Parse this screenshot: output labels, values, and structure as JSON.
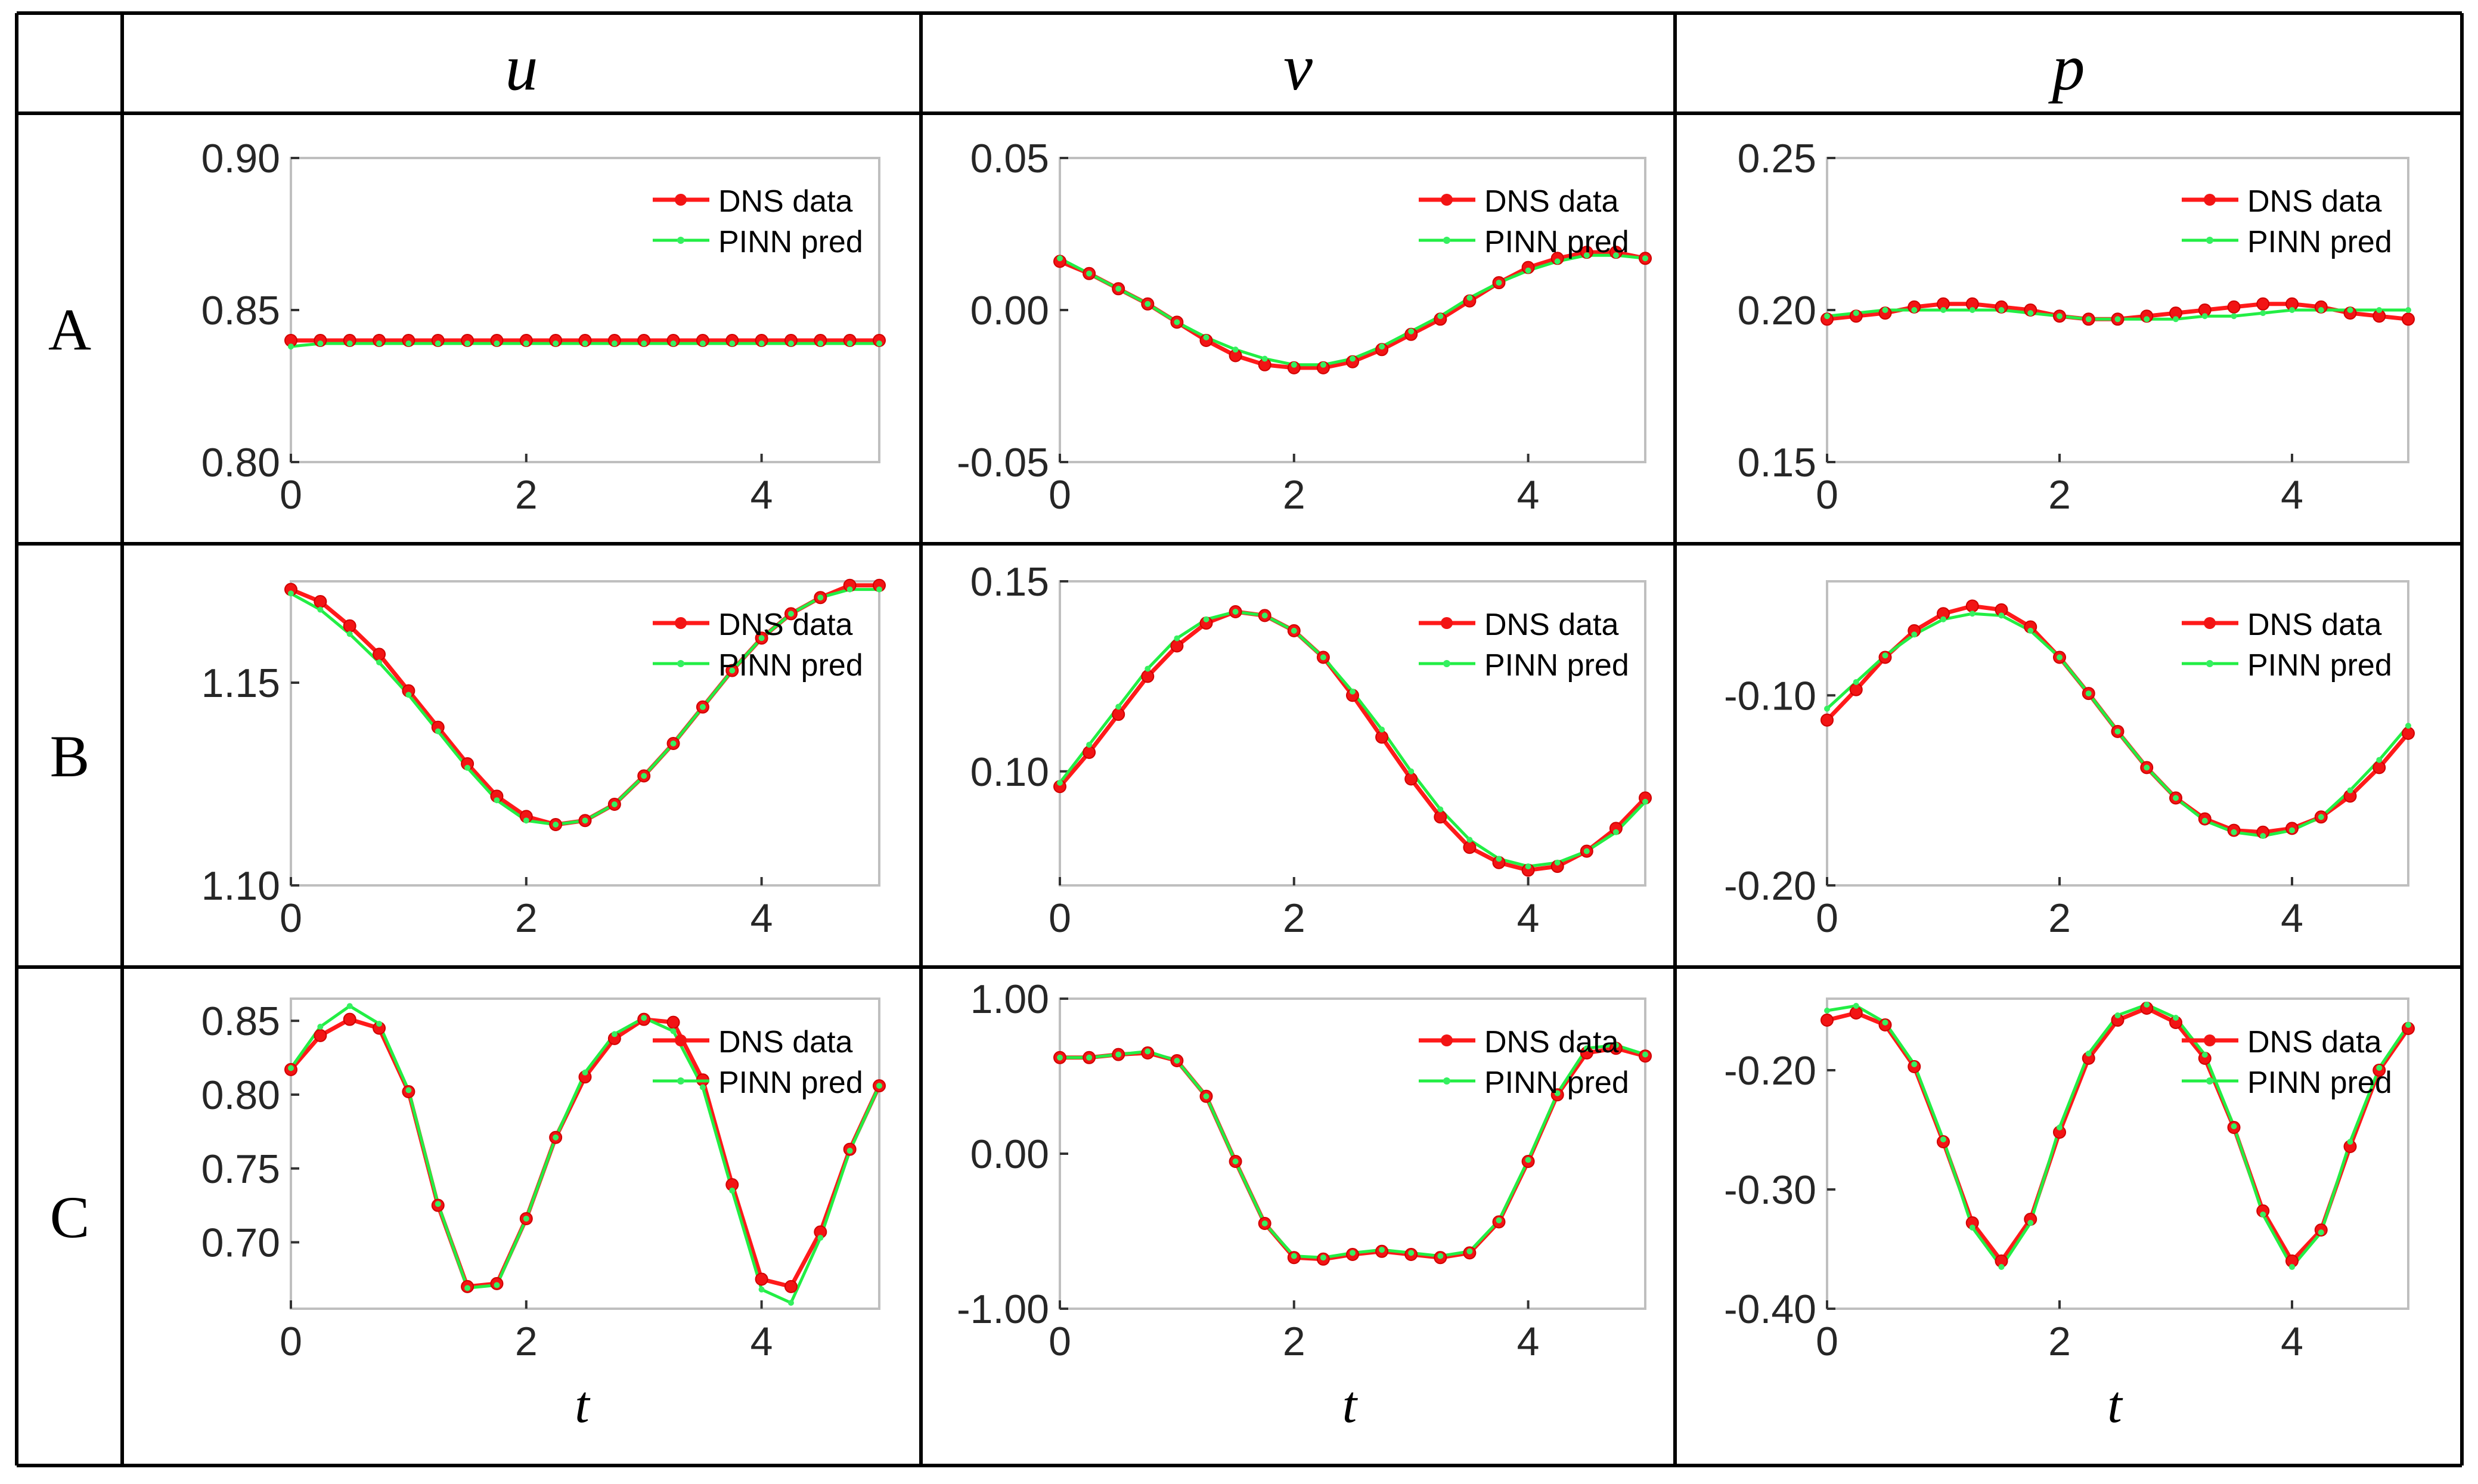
{
  "table": {
    "column_headers": [
      "u",
      "v",
      "p"
    ],
    "row_labels": [
      "A",
      "B",
      "C"
    ],
    "x_axis_label": "t"
  },
  "legend": {
    "dns_label": "DNS data",
    "pinn_label": "PINN pred"
  },
  "colors": {
    "dns": "#ff1a1a",
    "dns_marker": "#f21414",
    "pinn": "#22ee44",
    "pinn_marker": "#35f060"
  },
  "chart_data": [
    {
      "id": "A-u",
      "row": "A",
      "column": "u",
      "type": "line",
      "x": [
        0,
        0.25,
        0.5,
        0.75,
        1,
        1.25,
        1.5,
        1.75,
        2,
        2.25,
        2.5,
        2.75,
        3,
        3.25,
        3.5,
        3.75,
        4,
        4.25,
        4.5,
        4.75,
        5
      ],
      "xlim": [
        0,
        5
      ],
      "xticks": [
        "0",
        "2",
        "4"
      ],
      "xtick_values": [
        0,
        2,
        4
      ],
      "ylim": [
        0.8,
        0.9
      ],
      "yticks": [
        "0.80",
        "0.85",
        "0.90"
      ],
      "ytick_values": [
        0.8,
        0.85,
        0.9
      ],
      "series": [
        {
          "name": "DNS data",
          "values": [
            0.84,
            0.84,
            0.84,
            0.84,
            0.84,
            0.84,
            0.84,
            0.84,
            0.84,
            0.84,
            0.84,
            0.84,
            0.84,
            0.84,
            0.84,
            0.84,
            0.84,
            0.84,
            0.84,
            0.84,
            0.84
          ]
        },
        {
          "name": "PINN pred",
          "values": [
            0.838,
            0.839,
            0.839,
            0.839,
            0.839,
            0.839,
            0.839,
            0.839,
            0.839,
            0.839,
            0.839,
            0.839,
            0.839,
            0.839,
            0.839,
            0.839,
            0.839,
            0.839,
            0.839,
            0.839,
            0.839
          ]
        }
      ]
    },
    {
      "id": "A-v",
      "row": "A",
      "column": "v",
      "type": "line",
      "x": [
        0,
        0.25,
        0.5,
        0.75,
        1,
        1.25,
        1.5,
        1.75,
        2,
        2.25,
        2.5,
        2.75,
        3,
        3.25,
        3.5,
        3.75,
        4,
        4.25,
        4.5,
        4.75,
        5
      ],
      "xlim": [
        0,
        5
      ],
      "xticks": [
        "0",
        "2",
        "4"
      ],
      "xtick_values": [
        0,
        2,
        4
      ],
      "ylim": [
        -0.05,
        0.05
      ],
      "yticks": [
        "-0.05",
        "0.00",
        "0.05"
      ],
      "ytick_values": [
        -0.05,
        0.0,
        0.05
      ],
      "series": [
        {
          "name": "DNS data",
          "values": [
            0.016,
            0.012,
            0.007,
            0.002,
            -0.004,
            -0.01,
            -0.015,
            -0.018,
            -0.019,
            -0.019,
            -0.017,
            -0.013,
            -0.008,
            -0.003,
            0.003,
            0.009,
            0.014,
            0.017,
            0.019,
            0.019,
            0.017
          ]
        },
        {
          "name": "PINN pred",
          "values": [
            0.017,
            0.012,
            0.007,
            0.002,
            -0.004,
            -0.009,
            -0.013,
            -0.016,
            -0.018,
            -0.018,
            -0.016,
            -0.012,
            -0.007,
            -0.002,
            0.004,
            0.009,
            0.013,
            0.016,
            0.018,
            0.018,
            0.017
          ]
        }
      ]
    },
    {
      "id": "A-p",
      "row": "A",
      "column": "p",
      "type": "line",
      "x": [
        0,
        0.25,
        0.5,
        0.75,
        1,
        1.25,
        1.5,
        1.75,
        2,
        2.25,
        2.5,
        2.75,
        3,
        3.25,
        3.5,
        3.75,
        4,
        4.25,
        4.5,
        4.75,
        5
      ],
      "xlim": [
        0,
        5
      ],
      "xticks": [
        "0",
        "2",
        "4"
      ],
      "xtick_values": [
        0,
        2,
        4
      ],
      "ylim": [
        0.15,
        0.25
      ],
      "yticks": [
        "0.15",
        "0.20",
        "0.25"
      ],
      "ytick_values": [
        0.15,
        0.2,
        0.25
      ],
      "series": [
        {
          "name": "DNS data",
          "values": [
            0.197,
            0.198,
            0.199,
            0.201,
            0.202,
            0.202,
            0.201,
            0.2,
            0.198,
            0.197,
            0.197,
            0.198,
            0.199,
            0.2,
            0.201,
            0.202,
            0.202,
            0.201,
            0.199,
            0.198,
            0.197
          ]
        },
        {
          "name": "PINN pred",
          "values": [
            0.198,
            0.199,
            0.2,
            0.2,
            0.2,
            0.2,
            0.2,
            0.199,
            0.198,
            0.197,
            0.197,
            0.197,
            0.197,
            0.198,
            0.198,
            0.199,
            0.2,
            0.2,
            0.2,
            0.2,
            0.2
          ]
        }
      ]
    },
    {
      "id": "B-u",
      "row": "B",
      "column": "u",
      "type": "line",
      "x": [
        0,
        0.25,
        0.5,
        0.75,
        1,
        1.25,
        1.5,
        1.75,
        2,
        2.25,
        2.5,
        2.75,
        3,
        3.25,
        3.5,
        3.75,
        4,
        4.25,
        4.5,
        4.75,
        5
      ],
      "xlim": [
        0,
        5
      ],
      "xticks": [
        "0",
        "2",
        "4"
      ],
      "xtick_values": [
        0,
        2,
        4
      ],
      "ylim": [
        1.1,
        1.175
      ],
      "yticks": [
        "1.10",
        "1.15"
      ],
      "ytick_values": [
        1.1,
        1.15
      ],
      "series": [
        {
          "name": "DNS data",
          "values": [
            1.173,
            1.17,
            1.164,
            1.157,
            1.148,
            1.139,
            1.13,
            1.122,
            1.117,
            1.115,
            1.116,
            1.12,
            1.127,
            1.135,
            1.144,
            1.153,
            1.161,
            1.167,
            1.171,
            1.174,
            1.174
          ]
        },
        {
          "name": "PINN pred",
          "values": [
            1.172,
            1.168,
            1.162,
            1.155,
            1.147,
            1.138,
            1.129,
            1.121,
            1.116,
            1.115,
            1.116,
            1.12,
            1.127,
            1.135,
            1.144,
            1.153,
            1.161,
            1.167,
            1.171,
            1.173,
            1.173
          ]
        }
      ]
    },
    {
      "id": "B-v",
      "row": "B",
      "column": "v",
      "type": "line",
      "x": [
        0,
        0.25,
        0.5,
        0.75,
        1,
        1.25,
        1.5,
        1.75,
        2,
        2.25,
        2.5,
        2.75,
        3,
        3.25,
        3.5,
        3.75,
        4,
        4.25,
        4.5,
        4.75,
        5
      ],
      "xlim": [
        0,
        5
      ],
      "xticks": [
        "0",
        "2",
        "4"
      ],
      "xtick_values": [
        0,
        2,
        4
      ],
      "ylim": [
        0.07,
        0.15
      ],
      "yticks": [
        "0.10",
        "0.15"
      ],
      "ytick_values": [
        0.1,
        0.15
      ],
      "series": [
        {
          "name": "DNS data",
          "values": [
            0.096,
            0.105,
            0.115,
            0.125,
            0.133,
            0.139,
            0.142,
            0.141,
            0.137,
            0.13,
            0.12,
            0.109,
            0.098,
            0.088,
            0.08,
            0.076,
            0.074,
            0.075,
            0.079,
            0.085,
            0.093
          ]
        },
        {
          "name": "PINN pred",
          "values": [
            0.097,
            0.107,
            0.117,
            0.127,
            0.135,
            0.14,
            0.142,
            0.141,
            0.137,
            0.13,
            0.121,
            0.111,
            0.1,
            0.09,
            0.082,
            0.077,
            0.075,
            0.076,
            0.079,
            0.084,
            0.092
          ]
        }
      ]
    },
    {
      "id": "B-p",
      "row": "B",
      "column": "p",
      "type": "line",
      "x": [
        0,
        0.25,
        0.5,
        0.75,
        1,
        1.25,
        1.5,
        1.75,
        2,
        2.25,
        2.5,
        2.75,
        3,
        3.25,
        3.5,
        3.75,
        4,
        4.25,
        4.5,
        4.75,
        5
      ],
      "xlim": [
        0,
        5
      ],
      "xticks": [
        "0",
        "2",
        "4"
      ],
      "xtick_values": [
        0,
        2,
        4
      ],
      "ylim": [
        -0.2,
        -0.04
      ],
      "yticks": [
        "-0.10",
        "-0.20"
      ],
      "ytick_values": [
        -0.1,
        -0.2
      ],
      "series": [
        {
          "name": "DNS data",
          "values": [
            -0.113,
            -0.097,
            -0.08,
            -0.066,
            -0.057,
            -0.053,
            -0.055,
            -0.064,
            -0.08,
            -0.099,
            -0.119,
            -0.138,
            -0.154,
            -0.165,
            -0.171,
            -0.172,
            -0.17,
            -0.164,
            -0.153,
            -0.138,
            -0.12
          ]
        },
        {
          "name": "PINN pred",
          "values": [
            -0.107,
            -0.093,
            -0.079,
            -0.068,
            -0.06,
            -0.057,
            -0.058,
            -0.066,
            -0.08,
            -0.099,
            -0.119,
            -0.138,
            -0.154,
            -0.166,
            -0.172,
            -0.174,
            -0.171,
            -0.164,
            -0.15,
            -0.134,
            -0.116
          ]
        }
      ]
    },
    {
      "id": "C-u",
      "row": "C",
      "column": "u",
      "type": "line",
      "x": [
        0,
        0.25,
        0.5,
        0.75,
        1,
        1.25,
        1.5,
        1.75,
        2,
        2.25,
        2.5,
        2.75,
        3,
        3.25,
        3.5,
        3.75,
        4,
        4.25,
        4.5,
        4.75,
        5
      ],
      "xlim": [
        0,
        5
      ],
      "xticks": [
        "0",
        "2",
        "4"
      ],
      "xtick_values": [
        0,
        2,
        4
      ],
      "ylim": [
        0.655,
        0.865
      ],
      "yticks": [
        "0.70",
        "0.75",
        "0.80",
        "0.85"
      ],
      "ytick_values": [
        0.7,
        0.75,
        0.8,
        0.85
      ],
      "series": [
        {
          "name": "DNS data",
          "values": [
            0.817,
            0.84,
            0.851,
            0.845,
            0.802,
            0.725,
            0.67,
            0.672,
            0.716,
            0.771,
            0.812,
            0.838,
            0.851,
            0.849,
            0.81,
            0.739,
            0.675,
            0.67,
            0.707,
            0.763,
            0.806
          ]
        },
        {
          "name": "PINN pred",
          "values": [
            0.818,
            0.846,
            0.86,
            0.848,
            0.803,
            0.726,
            0.669,
            0.671,
            0.716,
            0.771,
            0.815,
            0.841,
            0.852,
            0.843,
            0.805,
            0.735,
            0.668,
            0.659,
            0.703,
            0.762,
            0.806
          ]
        }
      ]
    },
    {
      "id": "C-v",
      "row": "C",
      "column": "v",
      "type": "line",
      "x": [
        0,
        0.25,
        0.5,
        0.75,
        1,
        1.25,
        1.5,
        1.75,
        2,
        2.25,
        2.5,
        2.75,
        3,
        3.25,
        3.5,
        3.75,
        4,
        4.25,
        4.5,
        4.75,
        5
      ],
      "xlim": [
        0,
        5
      ],
      "xticks": [
        "0",
        "2",
        "4"
      ],
      "xtick_values": [
        0,
        2,
        4
      ],
      "ylim": [
        -1.0,
        1.0
      ],
      "yticks": [
        "-1.00",
        "0.00",
        "1.00"
      ],
      "ytick_values": [
        -1.0,
        0.0,
        1.0
      ],
      "series": [
        {
          "name": "DNS data",
          "values": [
            0.62,
            0.62,
            0.64,
            0.65,
            0.6,
            0.37,
            -0.05,
            -0.45,
            -0.67,
            -0.68,
            -0.65,
            -0.63,
            -0.65,
            -0.67,
            -0.64,
            -0.44,
            -0.05,
            0.38,
            0.65,
            0.68,
            0.63
          ]
        },
        {
          "name": "PINN pred",
          "values": [
            0.62,
            0.62,
            0.64,
            0.66,
            0.6,
            0.37,
            -0.05,
            -0.45,
            -0.66,
            -0.67,
            -0.64,
            -0.62,
            -0.64,
            -0.66,
            -0.63,
            -0.43,
            -0.04,
            0.39,
            0.68,
            0.7,
            0.64
          ]
        }
      ]
    },
    {
      "id": "C-p",
      "row": "C",
      "column": "p",
      "type": "line",
      "x": [
        0,
        0.25,
        0.5,
        0.75,
        1,
        1.25,
        1.5,
        1.75,
        2,
        2.25,
        2.5,
        2.75,
        3,
        3.25,
        3.5,
        3.75,
        4,
        4.25,
        4.5,
        4.75,
        5
      ],
      "xlim": [
        0,
        5
      ],
      "xticks": [
        "0",
        "2",
        "4"
      ],
      "xtick_values": [
        0,
        2,
        4
      ],
      "ylim": [
        -0.4,
        -0.14
      ],
      "yticks": [
        "-0.20",
        "-0.30",
        "-0.40"
      ],
      "ytick_values": [
        -0.2,
        -0.3,
        -0.4
      ],
      "series": [
        {
          "name": "DNS data",
          "values": [
            -0.158,
            -0.152,
            -0.162,
            -0.197,
            -0.26,
            -0.328,
            -0.36,
            -0.325,
            -0.252,
            -0.19,
            -0.158,
            -0.148,
            -0.16,
            -0.19,
            -0.248,
            -0.318,
            -0.36,
            -0.334,
            -0.264,
            -0.2,
            -0.165
          ]
        },
        {
          "name": "PINN pred",
          "values": [
            -0.15,
            -0.146,
            -0.16,
            -0.195,
            -0.258,
            -0.332,
            -0.365,
            -0.328,
            -0.248,
            -0.186,
            -0.154,
            -0.145,
            -0.156,
            -0.187,
            -0.247,
            -0.321,
            -0.365,
            -0.336,
            -0.26,
            -0.198,
            -0.162
          ]
        }
      ]
    }
  ]
}
